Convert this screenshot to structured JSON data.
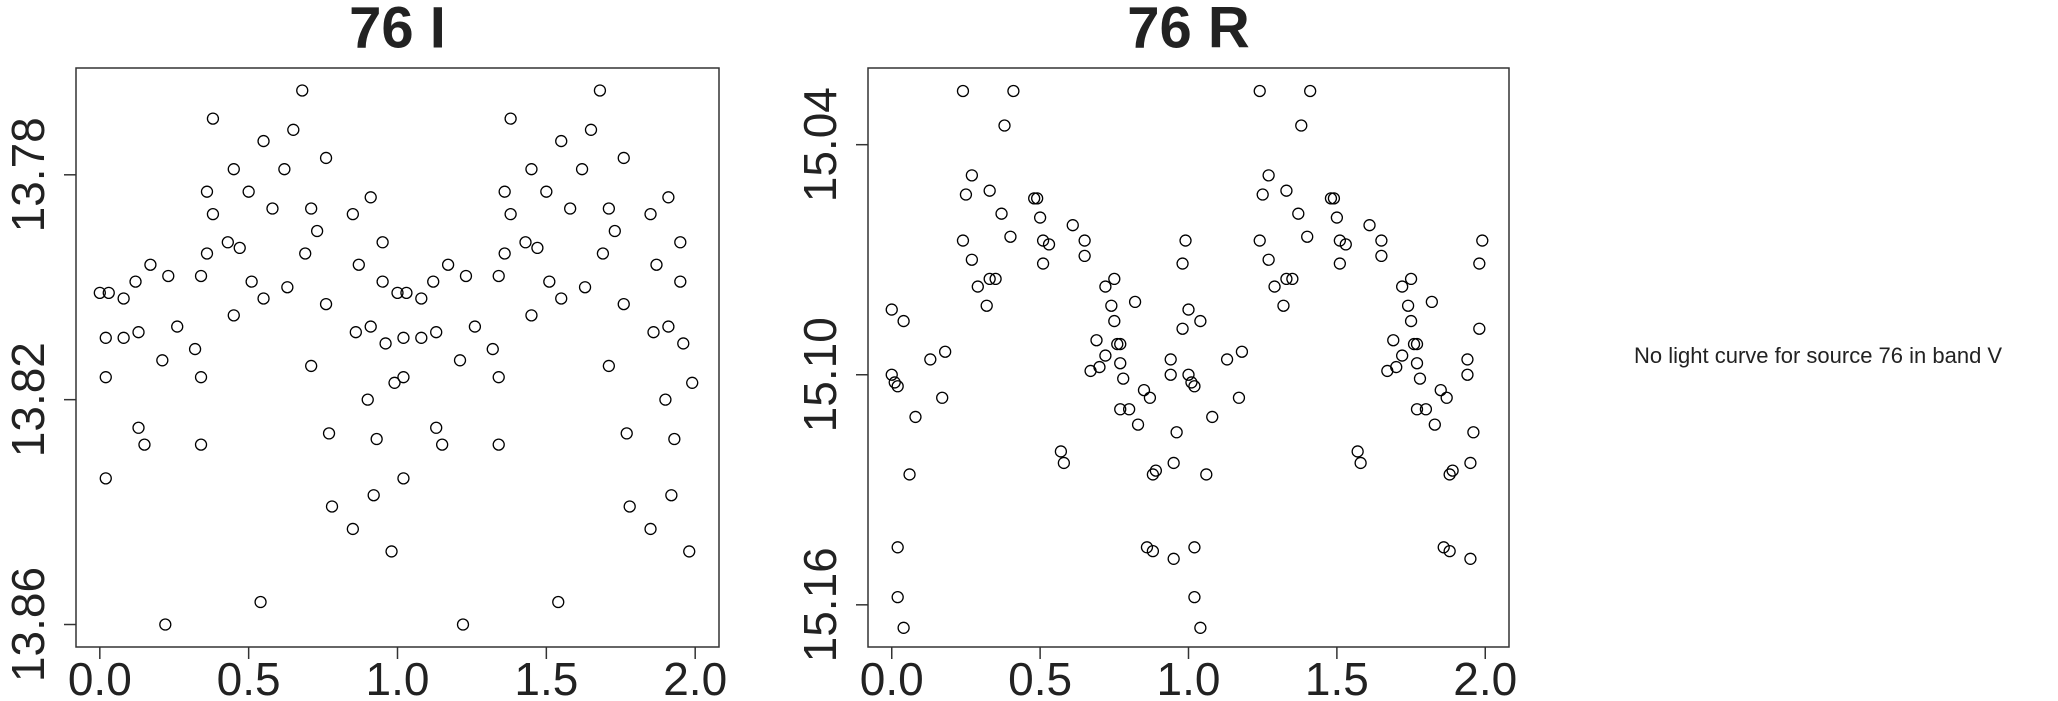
{
  "chart_data": [
    {
      "type": "scatter",
      "title": "76 I",
      "marker": "open-circle",
      "color": "#000000",
      "y_reversed": true,
      "xlim": [
        -0.08,
        2.08
      ],
      "ylim": [
        13.761,
        13.864
      ],
      "xticks": [
        {
          "value": 0,
          "label": "0.0"
        },
        0.5,
        {
          "value": 1,
          "label": "1.0"
        },
        1.5,
        {
          "value": 2,
          "label": "2.0"
        }
      ],
      "yticks": [
        13.78,
        13.82,
        13.86
      ],
      "x": [
        0.0,
        0.03,
        0.08,
        0.02,
        0.08,
        0.02,
        0.02,
        0.12,
        0.13,
        0.13,
        0.15,
        0.17,
        0.21,
        0.22,
        0.23,
        0.26,
        0.32,
        0.34,
        0.34,
        0.34,
        0.36,
        0.36,
        0.38,
        0.38,
        0.43,
        0.45,
        0.45,
        0.47,
        0.5,
        0.51,
        0.54,
        0.55,
        0.55,
        0.58,
        0.62,
        0.63,
        0.65,
        0.68,
        0.69,
        0.71,
        0.71,
        0.73,
        0.76,
        0.76,
        0.77,
        0.78,
        0.85,
        0.85,
        0.86,
        0.87,
        0.9,
        0.91,
        0.91,
        0.92,
        0.93,
        0.95,
        0.95,
        0.96,
        0.98,
        0.99,
        1.0,
        1.03,
        1.08,
        1.02,
        1.08,
        1.02,
        1.02,
        1.12,
        1.13,
        1.13,
        1.15,
        1.17,
        1.21,
        1.22,
        1.23,
        1.26,
        1.32,
        1.34,
        1.34,
        1.34,
        1.36,
        1.36,
        1.38,
        1.38,
        1.43,
        1.45,
        1.45,
        1.47,
        1.5,
        1.51,
        1.54,
        1.55,
        1.55,
        1.58,
        1.62,
        1.63,
        1.65,
        1.68,
        1.69,
        1.71,
        1.71,
        1.73,
        1.76,
        1.76,
        1.77,
        1.78,
        1.85,
        1.85,
        1.86,
        1.87,
        1.9,
        1.91,
        1.91,
        1.92,
        1.93,
        1.95,
        1.95,
        1.96,
        1.98,
        1.99
      ],
      "y": [
        13.801,
        13.801,
        13.802,
        13.809,
        13.809,
        13.816,
        13.834,
        13.799,
        13.808,
        13.825,
        13.828,
        13.796,
        13.813,
        13.86,
        13.798,
        13.807,
        13.811,
        13.816,
        13.828,
        13.798,
        13.783,
        13.794,
        13.77,
        13.787,
        13.792,
        13.805,
        13.779,
        13.793,
        13.783,
        13.799,
        13.856,
        13.774,
        13.802,
        13.786,
        13.779,
        13.8,
        13.772,
        13.765,
        13.794,
        13.786,
        13.814,
        13.79,
        13.777,
        13.803,
        13.826,
        13.839,
        13.843,
        13.787,
        13.808,
        13.796,
        13.82,
        13.784,
        13.807,
        13.837,
        13.827,
        13.792,
        13.799,
        13.81,
        13.847,
        13.817,
        13.801,
        13.801,
        13.802,
        13.809,
        13.809,
        13.816,
        13.834,
        13.799,
        13.808,
        13.825,
        13.828,
        13.796,
        13.813,
        13.86,
        13.798,
        13.807,
        13.811,
        13.816,
        13.828,
        13.798,
        13.783,
        13.794,
        13.77,
        13.787,
        13.792,
        13.805,
        13.779,
        13.793,
        13.783,
        13.799,
        13.856,
        13.774,
        13.802,
        13.786,
        13.779,
        13.8,
        13.772,
        13.765,
        13.794,
        13.786,
        13.814,
        13.79,
        13.777,
        13.803,
        13.826,
        13.839,
        13.843,
        13.787,
        13.808,
        13.796,
        13.82,
        13.784,
        13.807,
        13.837,
        13.827,
        13.792,
        13.799,
        13.81,
        13.847,
        13.817
      ]
    },
    {
      "type": "scatter",
      "title": "76 R",
      "marker": "open-circle",
      "color": "#000000",
      "y_reversed": true,
      "xlim": [
        -0.08,
        2.08
      ],
      "ylim": [
        15.02,
        15.171
      ],
      "xticks": [
        {
          "value": 0,
          "label": "0.0"
        },
        0.5,
        {
          "value": 1,
          "label": "1.0"
        },
        1.5,
        {
          "value": 2,
          "label": "2.0"
        }
      ],
      "yticks": [
        15.04,
        {
          "value": 15.1,
          "label": "15.10"
        },
        15.16
      ],
      "x": [
        0.0,
        0.01,
        0.02,
        0.0,
        0.04,
        0.02,
        0.02,
        0.04,
        0.06,
        0.08,
        0.13,
        0.17,
        0.18,
        0.24,
        0.25,
        0.24,
        0.27,
        0.27,
        0.29,
        0.32,
        0.33,
        0.33,
        0.35,
        0.37,
        0.38,
        0.4,
        0.41,
        0.48,
        0.49,
        0.5,
        0.51,
        0.51,
        0.53,
        0.57,
        0.58,
        0.61,
        0.65,
        0.65,
        0.67,
        0.7,
        0.69,
        0.72,
        0.72,
        0.75,
        0.74,
        0.75,
        0.76,
        0.77,
        0.77,
        0.78,
        0.77,
        0.8,
        0.82,
        0.83,
        0.85,
        0.86,
        0.87,
        0.88,
        0.88,
        0.89,
        0.94,
        0.94,
        0.95,
        0.96,
        0.95,
        0.98,
        0.99,
        0.98,
        1.0,
        1.01,
        1.02,
        1.0,
        1.04,
        1.02,
        1.02,
        1.04,
        1.06,
        1.08,
        1.13,
        1.17,
        1.18,
        1.24,
        1.25,
        1.24,
        1.27,
        1.27,
        1.29,
        1.32,
        1.33,
        1.33,
        1.35,
        1.37,
        1.38,
        1.4,
        1.41,
        1.48,
        1.49,
        1.5,
        1.51,
        1.51,
        1.53,
        1.57,
        1.58,
        1.61,
        1.65,
        1.65,
        1.67,
        1.7,
        1.69,
        1.72,
        1.72,
        1.75,
        1.74,
        1.75,
        1.76,
        1.77,
        1.77,
        1.78,
        1.77,
        1.8,
        1.82,
        1.83,
        1.85,
        1.86,
        1.87,
        1.88,
        1.88,
        1.89,
        1.94,
        1.94,
        1.95,
        1.96,
        1.95,
        1.98,
        1.99,
        1.98
      ],
      "y": [
        15.1,
        15.102,
        15.103,
        15.083,
        15.086,
        15.145,
        15.158,
        15.166,
        15.126,
        15.111,
        15.096,
        15.106,
        15.094,
        15.026,
        15.053,
        15.065,
        15.048,
        15.07,
        15.077,
        15.082,
        15.075,
        15.052,
        15.075,
        15.058,
        15.035,
        15.064,
        15.026,
        15.054,
        15.054,
        15.059,
        15.065,
        15.071,
        15.066,
        15.12,
        15.123,
        15.061,
        15.065,
        15.069,
        15.099,
        15.098,
        15.091,
        15.095,
        15.077,
        15.075,
        15.082,
        15.086,
        15.092,
        15.092,
        15.097,
        15.101,
        15.109,
        15.109,
        15.081,
        15.113,
        15.104,
        15.145,
        15.106,
        15.126,
        15.146,
        15.125,
        15.096,
        15.1,
        15.148,
        15.115,
        15.123,
        15.088,
        15.065,
        15.071,
        15.1,
        15.102,
        15.103,
        15.083,
        15.086,
        15.145,
        15.158,
        15.166,
        15.126,
        15.111,
        15.096,
        15.106,
        15.094,
        15.026,
        15.053,
        15.065,
        15.048,
        15.07,
        15.077,
        15.082,
        15.075,
        15.052,
        15.075,
        15.058,
        15.035,
        15.064,
        15.026,
        15.054,
        15.054,
        15.059,
        15.065,
        15.071,
        15.066,
        15.12,
        15.123,
        15.061,
        15.065,
        15.069,
        15.099,
        15.098,
        15.091,
        15.095,
        15.077,
        15.075,
        15.082,
        15.086,
        15.092,
        15.092,
        15.097,
        15.101,
        15.109,
        15.109,
        15.081,
        15.113,
        15.104,
        15.145,
        15.106,
        15.126,
        15.146,
        15.125,
        15.096,
        15.1,
        15.148,
        15.115,
        15.123,
        15.088,
        15.065,
        15.071
      ]
    }
  ],
  "message": "No light curve for source 76 in band V"
}
